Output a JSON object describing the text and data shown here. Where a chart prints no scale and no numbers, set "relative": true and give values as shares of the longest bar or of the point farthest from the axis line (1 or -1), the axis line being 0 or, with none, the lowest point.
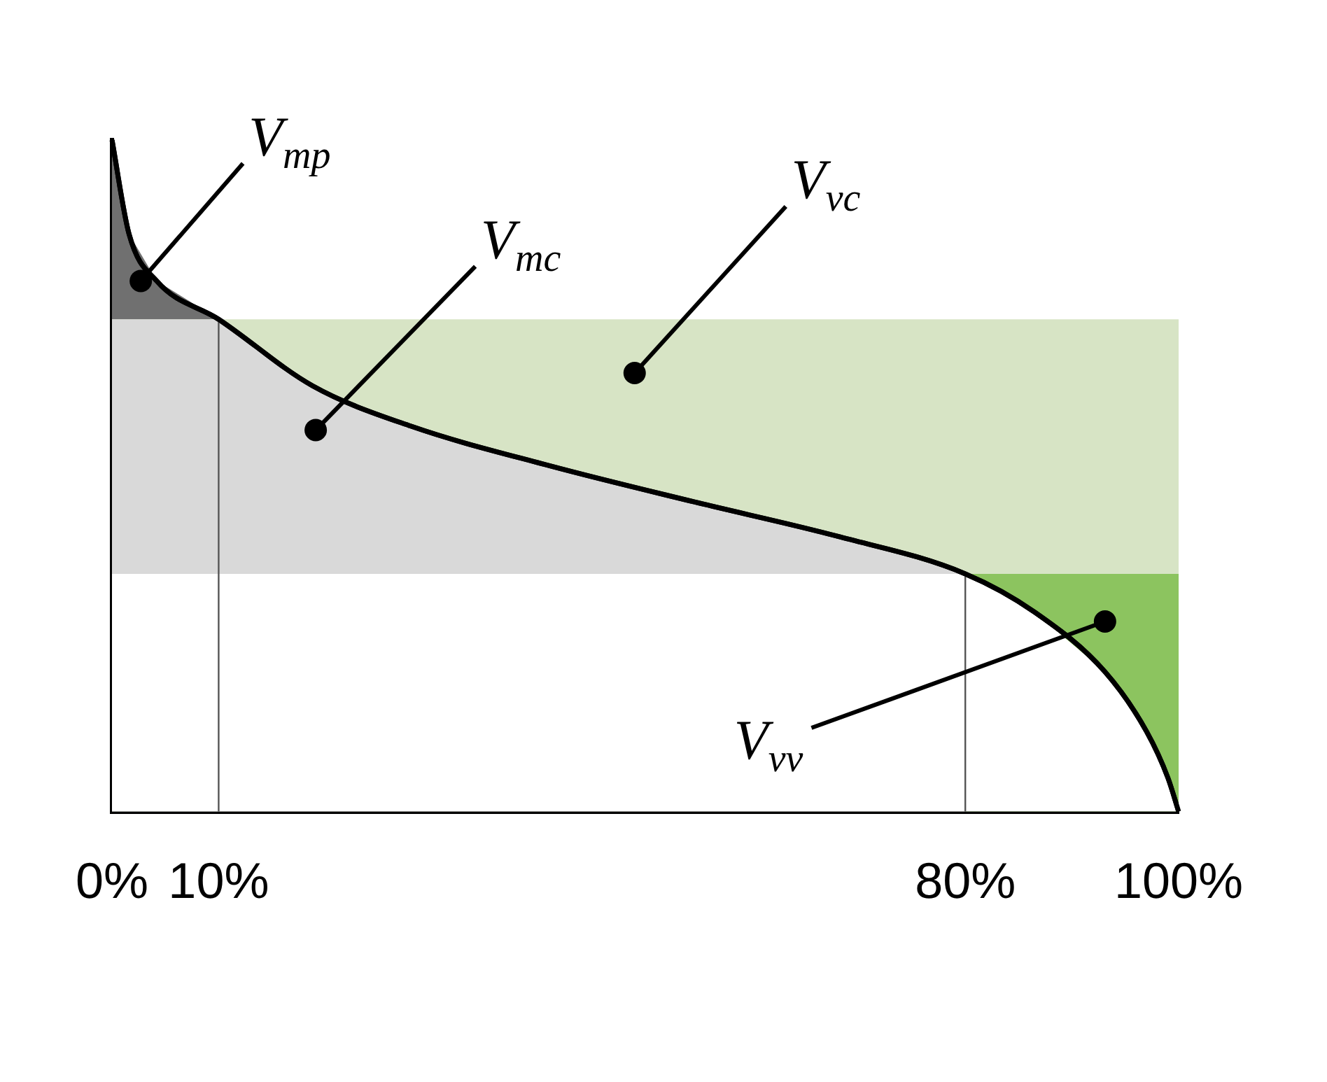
{
  "chart_data": {
    "type": "line",
    "relative": true,
    "xlim": [
      0,
      100
    ],
    "xticks": [
      {
        "value": 0,
        "label": "0%"
      },
      {
        "value": 10,
        "label": "10%"
      },
      {
        "value": 80,
        "label": "80%"
      },
      {
        "value": 100,
        "label": "100%"
      }
    ],
    "series": [
      {
        "type": "area",
        "color": "#707070",
        "x": [
          0,
          1.6,
          4.2,
          10
        ],
        "values": [
          1,
          0.86,
          0.79,
          0.733
        ]
      },
      {
        "type": "area",
        "color": "#d7e4c5",
        "x": [
          0,
          100
        ],
        "values": [
          0.733,
          0.733
        ]
      },
      {
        "type": "area",
        "color": "#d9d9d9",
        "x": [
          0,
          10,
          18.8,
          28,
          41,
          54.6,
          68,
          80
        ],
        "values": [
          0.733,
          0.733,
          0.634,
          0.574,
          0.515,
          0.461,
          0.41,
          0.354
        ]
      },
      {
        "type": "area",
        "color": "#8cc45f",
        "x": [
          80,
          100
        ],
        "values": [
          0.354,
          0.354
        ]
      },
      {
        "type": "area",
        "color": "#ffffff",
        "x": [
          0,
          80,
          86.5,
          93.1,
          97,
          99,
          100
        ],
        "values": [
          0.354,
          0.354,
          0.297,
          0.208,
          0.119,
          0.05,
          0
        ]
      },
      {
        "color": "#000000",
        "x": [
          0,
          1.6,
          4.2,
          10,
          18.8,
          28,
          41,
          54.6,
          68,
          80,
          86.5,
          93.1,
          97,
          99,
          100
        ],
        "values": [
          1,
          0.86,
          0.79,
          0.733,
          0.634,
          0.574,
          0.515,
          0.461,
          0.41,
          0.354,
          0.297,
          0.208,
          0.119,
          0.05,
          0
        ]
      }
    ],
    "ref_lines": [
      {
        "axis": "x",
        "value": 10,
        "color": "#555555"
      },
      {
        "axis": "x",
        "value": 80,
        "color": "#555555"
      }
    ],
    "annotations": [
      {
        "text": "V$_{mp}$",
        "x": 2.7,
        "y": 0.79
      },
      {
        "text": "V$_{mc}$",
        "x": 19.1,
        "y": 0.568
      },
      {
        "text": "V$_{vc}$",
        "x": 49,
        "y": 0.653
      },
      {
        "text": "V$_{vv}$",
        "x": 93.1,
        "y": 0.283
      }
    ],
    "legend": false,
    "grid": false
  }
}
